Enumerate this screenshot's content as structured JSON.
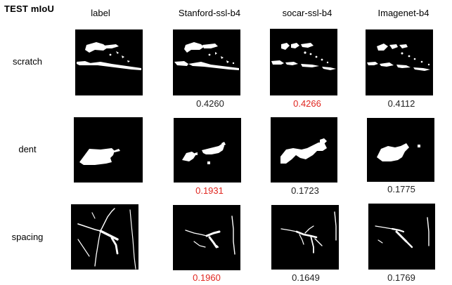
{
  "corner_label": "TEST mIoU",
  "columns": [
    "label",
    "Stanford-ssl-b4",
    "socar-ssl-b4",
    "Imagenet-b4"
  ],
  "rows": [
    {
      "label": "scratch",
      "scores": [
        {
          "value": "0.4260",
          "color": "#222222"
        },
        {
          "value": "0.4266",
          "color": "#e0261f"
        },
        {
          "value": "0.4112",
          "color": "#222222"
        }
      ]
    },
    {
      "label": "dent",
      "scores": [
        {
          "value": "0.1931",
          "color": "#e0261f"
        },
        {
          "value": "0.1723",
          "color": "#222222"
        },
        {
          "value": "0.1775",
          "color": "#222222"
        }
      ]
    },
    {
      "label": "spacing",
      "scores": [
        {
          "value": "0.1960",
          "color": "#e0261f"
        },
        {
          "value": "0.1649",
          "color": "#222222"
        },
        {
          "value": "0.1769",
          "color": "#222222"
        }
      ]
    }
  ],
  "colors": {
    "highlight": "#e0261f",
    "normal": "#222222",
    "mask_background": "#000000",
    "mask_foreground": "#ffffff"
  }
}
